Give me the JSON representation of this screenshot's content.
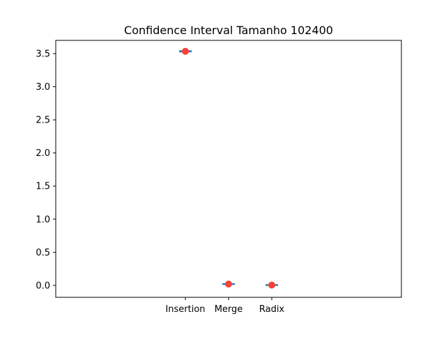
{
  "chart_data": {
    "type": "scatter",
    "title": "Confidence Interval Tamanho 102400",
    "xlabel": "",
    "ylabel": "",
    "categories": [
      "Insertion",
      "Merge",
      "Radix"
    ],
    "values": [
      3.535,
      0.02,
      0.005
    ],
    "ci_lower": [
      3.52,
      0.015,
      0.002
    ],
    "ci_upper": [
      3.55,
      0.025,
      0.008
    ],
    "xlim": [
      0,
      8
    ],
    "ylim": [
      -0.18,
      3.7
    ],
    "yticks": [
      "0.0",
      "0.5",
      "1.0",
      "1.5",
      "2.0",
      "2.5",
      "3.0",
      "3.5"
    ],
    "ytick_values": [
      0,
      0.5,
      1.0,
      1.5,
      2.0,
      2.5,
      3.0,
      3.5
    ],
    "grid": false,
    "colors": {
      "point": "#f44336",
      "interval": "#2c7bb6"
    }
  }
}
